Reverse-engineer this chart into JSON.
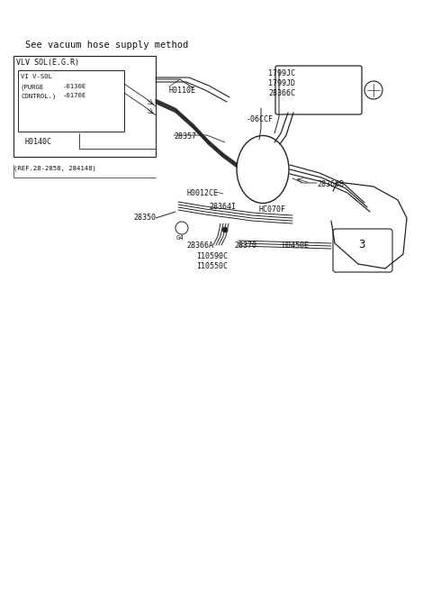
{
  "background_color": "#ffffff",
  "text_color": "#111111",
  "diagram_color": "#222222",
  "title": "See vacuum hose supply method",
  "vlv_sol_egr": "VLV SOL(E.G.R)",
  "viv_sol": "VI V-SOL",
  "purge": "(PURGE",
  "control": "CONTROL.)",
  "h0130e": "-0130E",
  "h0170e": "-0170E",
  "h0140c": "H0140C",
  "h0110e": "H0110E",
  "ref": "(REF.28-2858, 284148)",
  "p28357": "28357",
  "p1799jc": "1799JC",
  "p1799jd": "1799JD",
  "p28366c": "28366C",
  "h06ccf": "-06CCF",
  "h0012ce": "H0012CE",
  "p28364i": "28364I",
  "hc070f": "HC070F",
  "p28350": "28350",
  "p28366b": "28366B",
  "p28366a": "28366A",
  "p28370": "28370",
  "h0450e": "H0450E",
  "h10590c": "I10590C",
  "h10550c": "I10550C",
  "num3": "3",
  "g4": "G4"
}
